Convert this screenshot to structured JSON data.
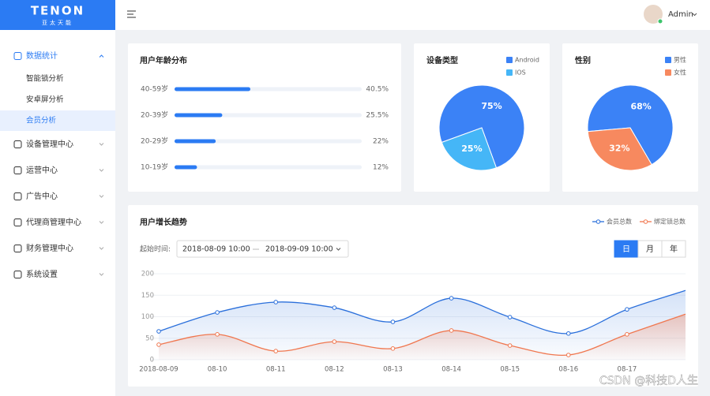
{
  "sidebar": {
    "logo": "TENON",
    "logo_sub": "亚太天能",
    "menu": [
      {
        "label": "数据统计",
        "children": [
          "智能锁分析",
          "安卓屏分析",
          "会员分析"
        ]
      },
      {
        "label": "设备管理中心"
      },
      {
        "label": "运营中心"
      },
      {
        "label": "广告中心"
      },
      {
        "label": "代理商管理中心"
      },
      {
        "label": "财务管理中心"
      },
      {
        "label": "系统设置"
      }
    ]
  },
  "header": {
    "user": "Admin"
  },
  "filter": {
    "label": "起始时间:",
    "start": "2018-08-09 10:00",
    "end": "2018-09-09 10:00",
    "periods": [
      "日",
      "月",
      "年"
    ]
  },
  "watermark": "CSDN @科技D人生",
  "chart_data": [
    {
      "type": "hbar",
      "title": "用户年龄分布",
      "categories": [
        "40-59岁",
        "20-39岁",
        "20-29岁",
        "10-19岁"
      ],
      "values": [
        40.5,
        25.5,
        22,
        12
      ],
      "value_labels": [
        "40.5%",
        "25.5%",
        "22%",
        "12%"
      ],
      "xlim": [
        0,
        100
      ],
      "color": "#2b7bf3"
    },
    {
      "type": "pie",
      "title": "设备类型",
      "categories": [
        "Android",
        "IOS"
      ],
      "values": [
        75,
        25
      ],
      "value_labels": [
        "75%",
        "25%"
      ],
      "colors": [
        "#3b82f6",
        "#45b6f7"
      ]
    },
    {
      "type": "pie",
      "title": "性别",
      "categories": [
        "男性",
        "女性"
      ],
      "values": [
        68,
        32
      ],
      "value_labels": [
        "68%",
        "32%"
      ],
      "colors": [
        "#3b82f6",
        "#f7895f"
      ]
    },
    {
      "type": "line",
      "title": "用户增长趋势",
      "categories": [
        "2018-08-09",
        "08-10",
        "08-11",
        "08-12",
        "08-13",
        "08-14",
        "08-15",
        "08-16",
        "08-17",
        null
      ],
      "series": [
        {
          "name": "会员总数",
          "color": "#2a6fdb",
          "values": [
            66,
            110,
            134,
            121,
            88,
            143,
            99,
            61,
            117,
            161
          ]
        },
        {
          "name": "绑定锁总数",
          "color": "#f0774f",
          "values": [
            35,
            59,
            20,
            42,
            26,
            68,
            33,
            11,
            59,
            106
          ]
        }
      ],
      "ylim": [
        0,
        200
      ],
      "yticks": [
        0,
        50,
        100,
        150,
        200
      ],
      "grid": true
    }
  ]
}
